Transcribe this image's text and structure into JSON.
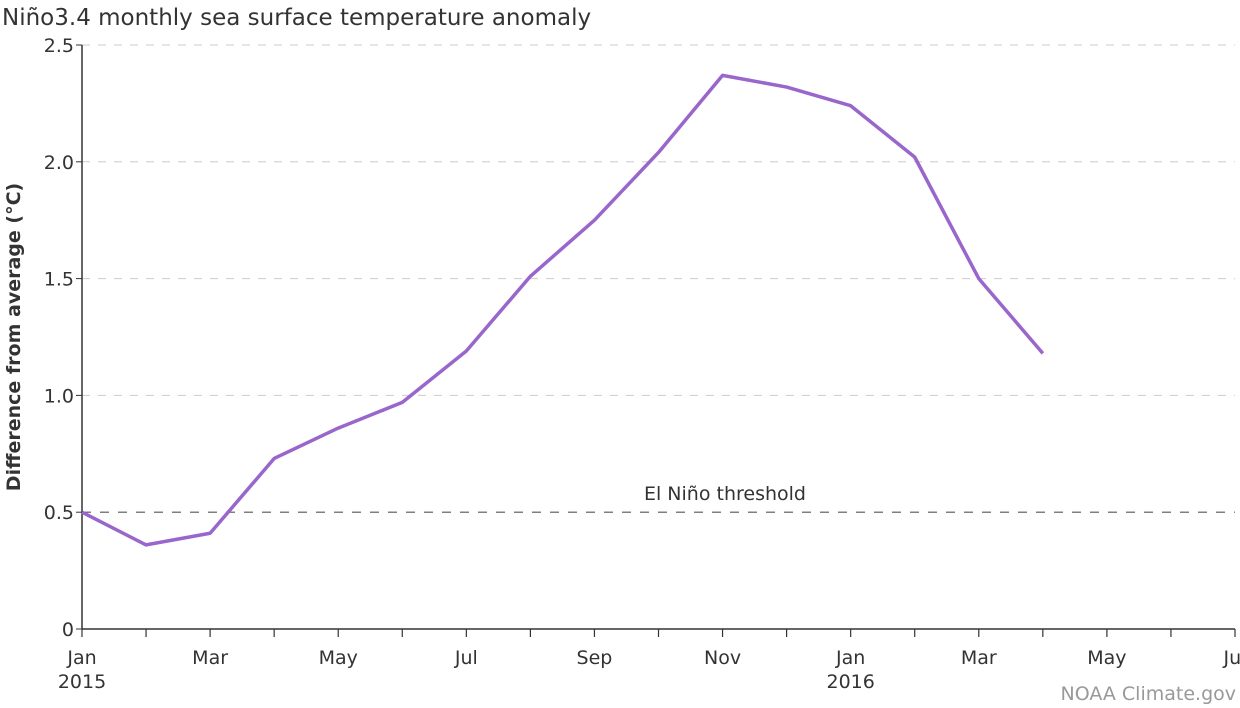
{
  "chart_data": {
    "type": "line",
    "title": "Niño3.4 monthly sea surface temperature anomaly",
    "y_label": "Difference from average (°C)",
    "source": "NOAA Climate.gov",
    "categories": [
      "Jan 2015",
      null,
      "Mar",
      null,
      "May",
      null,
      "Jul",
      null,
      "Sep",
      null,
      "Nov",
      null,
      "Jan 2016",
      null,
      "Mar",
      null,
      "May",
      null,
      "Jul"
    ],
    "series": [
      {
        "name": "Niño3.4",
        "color": "#9966cc",
        "values": [
          0.5,
          0.36,
          0.41,
          0.73,
          0.86,
          0.97,
          1.19,
          1.51,
          1.75,
          2.04,
          2.37,
          2.32,
          2.24,
          2.02,
          1.5,
          1.18,
          null,
          null,
          null
        ]
      }
    ],
    "ylim": [
      0,
      2.5
    ],
    "yticks": [
      0,
      0.5,
      {
        "value": 1,
        "label": "1.0"
      },
      1.5,
      {
        "value": 2,
        "label": "2.0"
      },
      2.5
    ],
    "grid": true,
    "threshold": {
      "value": 0.5,
      "label": "El Niño threshold"
    }
  }
}
